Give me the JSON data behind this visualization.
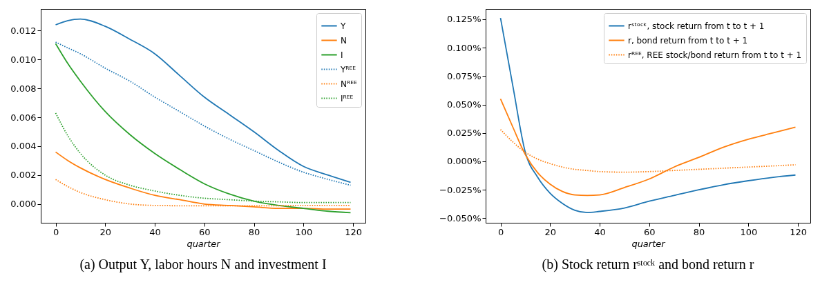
{
  "chart_data": [
    {
      "type": "line",
      "title": "(a) Output Y, labor hours N and investment I",
      "xlabel": "quarter",
      "x": [
        0,
        5,
        10,
        20,
        30,
        40,
        50,
        60,
        70,
        80,
        90,
        100,
        110,
        119
      ],
      "xlim": [
        -6,
        125
      ],
      "xticks": [
        0,
        20,
        40,
        60,
        80,
        100,
        120
      ],
      "ylim": [
        -0.0013,
        0.0135
      ],
      "yticks": [
        {
          "value": 0,
          "label": "0.000"
        },
        {
          "value": 0.002,
          "label": "0.002"
        },
        {
          "value": 0.004,
          "label": "0.004"
        },
        {
          "value": 0.006,
          "label": "0.006"
        },
        {
          "value": 0.008,
          "label": "0.008"
        },
        {
          "value": 0.01,
          "label": "0.010"
        },
        {
          "value": 0.012,
          "label": "0.012"
        }
      ],
      "legend": "top right",
      "grid": false,
      "series": [
        {
          "name": "Y",
          "color": "#1f77b4",
          "line_style": "solid",
          "values": [
            0.0124,
            0.0127,
            0.0128,
            0.0123,
            0.0114,
            0.0104,
            0.0089,
            0.0074,
            0.0062,
            0.005,
            0.0037,
            0.0026,
            0.002,
            0.0015
          ]
        },
        {
          "name": "N",
          "color": "#ff7f0e",
          "line_style": "solid",
          "values": [
            0.0036,
            0.003,
            0.0025,
            0.0017,
            0.0011,
            0.0006,
            0.0003,
            0.0,
            -0.0001,
            -0.0002,
            -0.0003,
            -0.0003,
            -0.00035,
            -0.00035
          ]
        },
        {
          "name": "I",
          "color": "#2ca02c",
          "line_style": "solid",
          "values": [
            0.0111,
            0.0097,
            0.0085,
            0.0064,
            0.0048,
            0.0035,
            0.0024,
            0.0014,
            0.0007,
            0.0002,
            -0.0001,
            -0.0003,
            -0.0005,
            -0.0006
          ]
        },
        {
          "name": "Yᴿᴱᴱ",
          "color": "#1f77b4",
          "line_style": "dotted",
          "values": [
            0.0112,
            0.0108,
            0.0104,
            0.0094,
            0.0085,
            0.0074,
            0.0064,
            0.0054,
            0.0045,
            0.0037,
            0.0029,
            0.0022,
            0.0017,
            0.0013
          ]
        },
        {
          "name": "Nᴿᴱᴱ",
          "color": "#ff7f0e",
          "line_style": "dotted",
          "values": [
            0.0017,
            0.0012,
            0.0008,
            0.0003,
            0.0,
            -0.0001,
            -0.00012,
            -0.00012,
            -0.00012,
            -0.00012,
            -0.00012,
            -0.0001,
            -0.0001,
            -0.0001
          ]
        },
        {
          "name": "Iᴿᴱᴱ",
          "color": "#2ca02c",
          "line_style": "dotted",
          "values": [
            0.0063,
            0.0047,
            0.0035,
            0.002,
            0.0013,
            0.0009,
            0.0006,
            0.0004,
            0.0003,
            0.0002,
            0.00015,
            0.0001,
            0.0001,
            0.0001
          ]
        }
      ]
    },
    {
      "type": "line",
      "title": "(b) Stock return rˢᵗᵒᶜᵏ and bond return r",
      "xlabel": "quarter",
      "x": [
        0,
        5,
        10,
        15,
        20,
        25,
        30,
        35,
        40,
        50,
        60,
        70,
        80,
        90,
        100,
        110,
        119
      ],
      "xlim": [
        -6,
        125
      ],
      "xticks": [
        0,
        20,
        40,
        60,
        80,
        100,
        120
      ],
      "ylim": [
        -0.054,
        0.134
      ],
      "yticks": [
        {
          "value": -0.05,
          "label": "−0.050%"
        },
        {
          "value": -0.025,
          "label": "−0.025%"
        },
        {
          "value": 0,
          "label": "0.000%"
        },
        {
          "value": 0.025,
          "label": "0.025%"
        },
        {
          "value": 0.05,
          "label": "0.050%"
        },
        {
          "value": 0.075,
          "label": "0.075%"
        },
        {
          "value": 0.1,
          "label": "0.100%"
        },
        {
          "value": 0.125,
          "label": "0.125%"
        }
      ],
      "legend": "top right",
      "grid": false,
      "series": [
        {
          "name": "rˢᵗᵒᶜᵏ, stock return from t to t + 1",
          "color": "#1f77b4",
          "line_style": "solid",
          "values": [
            0.126,
            0.066,
            0.008,
            -0.014,
            -0.028,
            -0.037,
            -0.043,
            -0.045,
            -0.044,
            -0.041,
            -0.035,
            -0.03,
            -0.025,
            -0.0205,
            -0.017,
            -0.014,
            -0.012
          ]
        },
        {
          "name": "r, bond return from t to t + 1",
          "color": "#ff7f0e",
          "line_style": "solid",
          "values": [
            0.055,
            0.03,
            0.006,
            -0.01,
            -0.02,
            -0.0265,
            -0.0295,
            -0.03,
            -0.0295,
            -0.023,
            -0.0155,
            -0.005,
            0.0035,
            0.0125,
            0.0195,
            0.025,
            0.03
          ]
        },
        {
          "name": "rᴿᴱᴱ, REE stock/bond return from t to t + 1",
          "color": "#ff7f0e",
          "line_style": "dotted",
          "values": [
            0.028,
            0.017,
            0.008,
            0.002,
            -0.002,
            -0.005,
            -0.007,
            -0.008,
            -0.009,
            -0.0095,
            -0.009,
            -0.008,
            -0.007,
            -0.006,
            -0.005,
            -0.004,
            -0.003
          ]
        }
      ]
    }
  ]
}
